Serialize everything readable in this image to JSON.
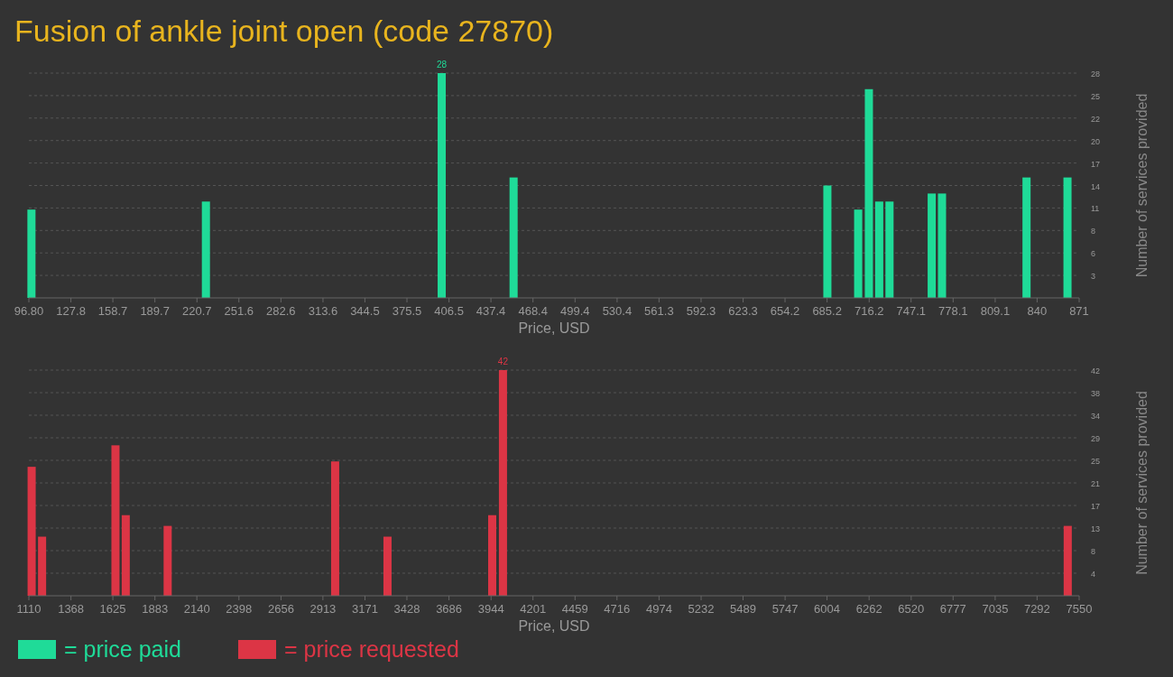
{
  "chart_data": [
    {
      "type": "bar",
      "title": "Fusion of ankle joint open (code 27870)",
      "xlabel": "Price, USD",
      "ylabel": "Number of services provided",
      "x": [
        98.7,
        227.3,
        401.1,
        454.1,
        685.4,
        708.1,
        716.0,
        723.6,
        731.2,
        762.3,
        769.9,
        832.2,
        862.4
      ],
      "series": [
        {
          "name": "= price paid",
          "color": "#1fdb98",
          "values": [
            11,
            12,
            28,
            15,
            14,
            11,
            26,
            12,
            12,
            13,
            13,
            15,
            15
          ],
          "value_labels": [
            null,
            null,
            "28",
            null,
            null,
            null,
            null,
            null,
            null,
            null,
            null,
            null,
            null
          ]
        }
      ],
      "xlim": [
        96.8,
        871
      ],
      "xticks": [
        {
          "value": 96.8,
          "label": "96.80"
        },
        127.8,
        158.7,
        189.7,
        220.7,
        251.6,
        282.6,
        313.6,
        344.5,
        375.5,
        406.5,
        437.4,
        468.4,
        499.4,
        530.4,
        561.3,
        592.3,
        623.3,
        654.2,
        685.2,
        716.2,
        747.1,
        778.1,
        809.1,
        840,
        871
      ],
      "ylim": [
        0,
        28
      ],
      "yticks": [
        {
          "value": 2.8,
          "label": "3"
        },
        {
          "value": 5.6,
          "label": "6"
        },
        {
          "value": 8.4,
          "label": "8"
        },
        {
          "value": 11.2,
          "label": "11"
        },
        {
          "value": 14,
          "label": "14"
        },
        {
          "value": 16.8,
          "label": "17"
        },
        {
          "value": 19.6,
          "label": "20"
        },
        {
          "value": 22.4,
          "label": "22"
        },
        {
          "value": 25.2,
          "label": "25"
        },
        28
      ],
      "grid": "y",
      "legend": "bottom left"
    },
    {
      "type": "bar",
      "xlabel": "Price, USD",
      "ylabel": "Number of services provided",
      "x": [
        1127,
        1191,
        1641,
        1704,
        1961,
        2988,
        3309,
        3951,
        4017,
        7480
      ],
      "series": [
        {
          "name": "= price requested",
          "color": "#dc3545",
          "values": [
            24,
            11,
            28,
            15,
            13,
            25,
            11,
            15,
            42,
            13
          ],
          "value_labels": [
            null,
            null,
            null,
            null,
            null,
            null,
            null,
            null,
            "42",
            null
          ]
        }
      ],
      "xlim": [
        1110,
        7550
      ],
      "xticks": [
        1110,
        1368,
        1625,
        1883,
        2140,
        2398,
        2656,
        2913,
        3171,
        3428,
        3686,
        3944,
        4201,
        4459,
        4716,
        4974,
        5232,
        5489,
        5747,
        6004,
        6262,
        6520,
        6777,
        7035,
        7292,
        7550
      ],
      "ylim": [
        0,
        42
      ],
      "yticks": [
        {
          "value": 4.2,
          "label": "4"
        },
        {
          "value": 8.4,
          "label": "8"
        },
        {
          "value": 12.6,
          "label": "13"
        },
        {
          "value": 16.8,
          "label": "17"
        },
        {
          "value": 21,
          "label": "21"
        },
        {
          "value": 25.2,
          "label": "25"
        },
        {
          "value": 29.4,
          "label": "29"
        },
        {
          "value": 33.6,
          "label": "34"
        },
        {
          "value": 37.8,
          "label": "38"
        },
        42
      ],
      "grid": "y",
      "legend": "bottom left"
    }
  ]
}
